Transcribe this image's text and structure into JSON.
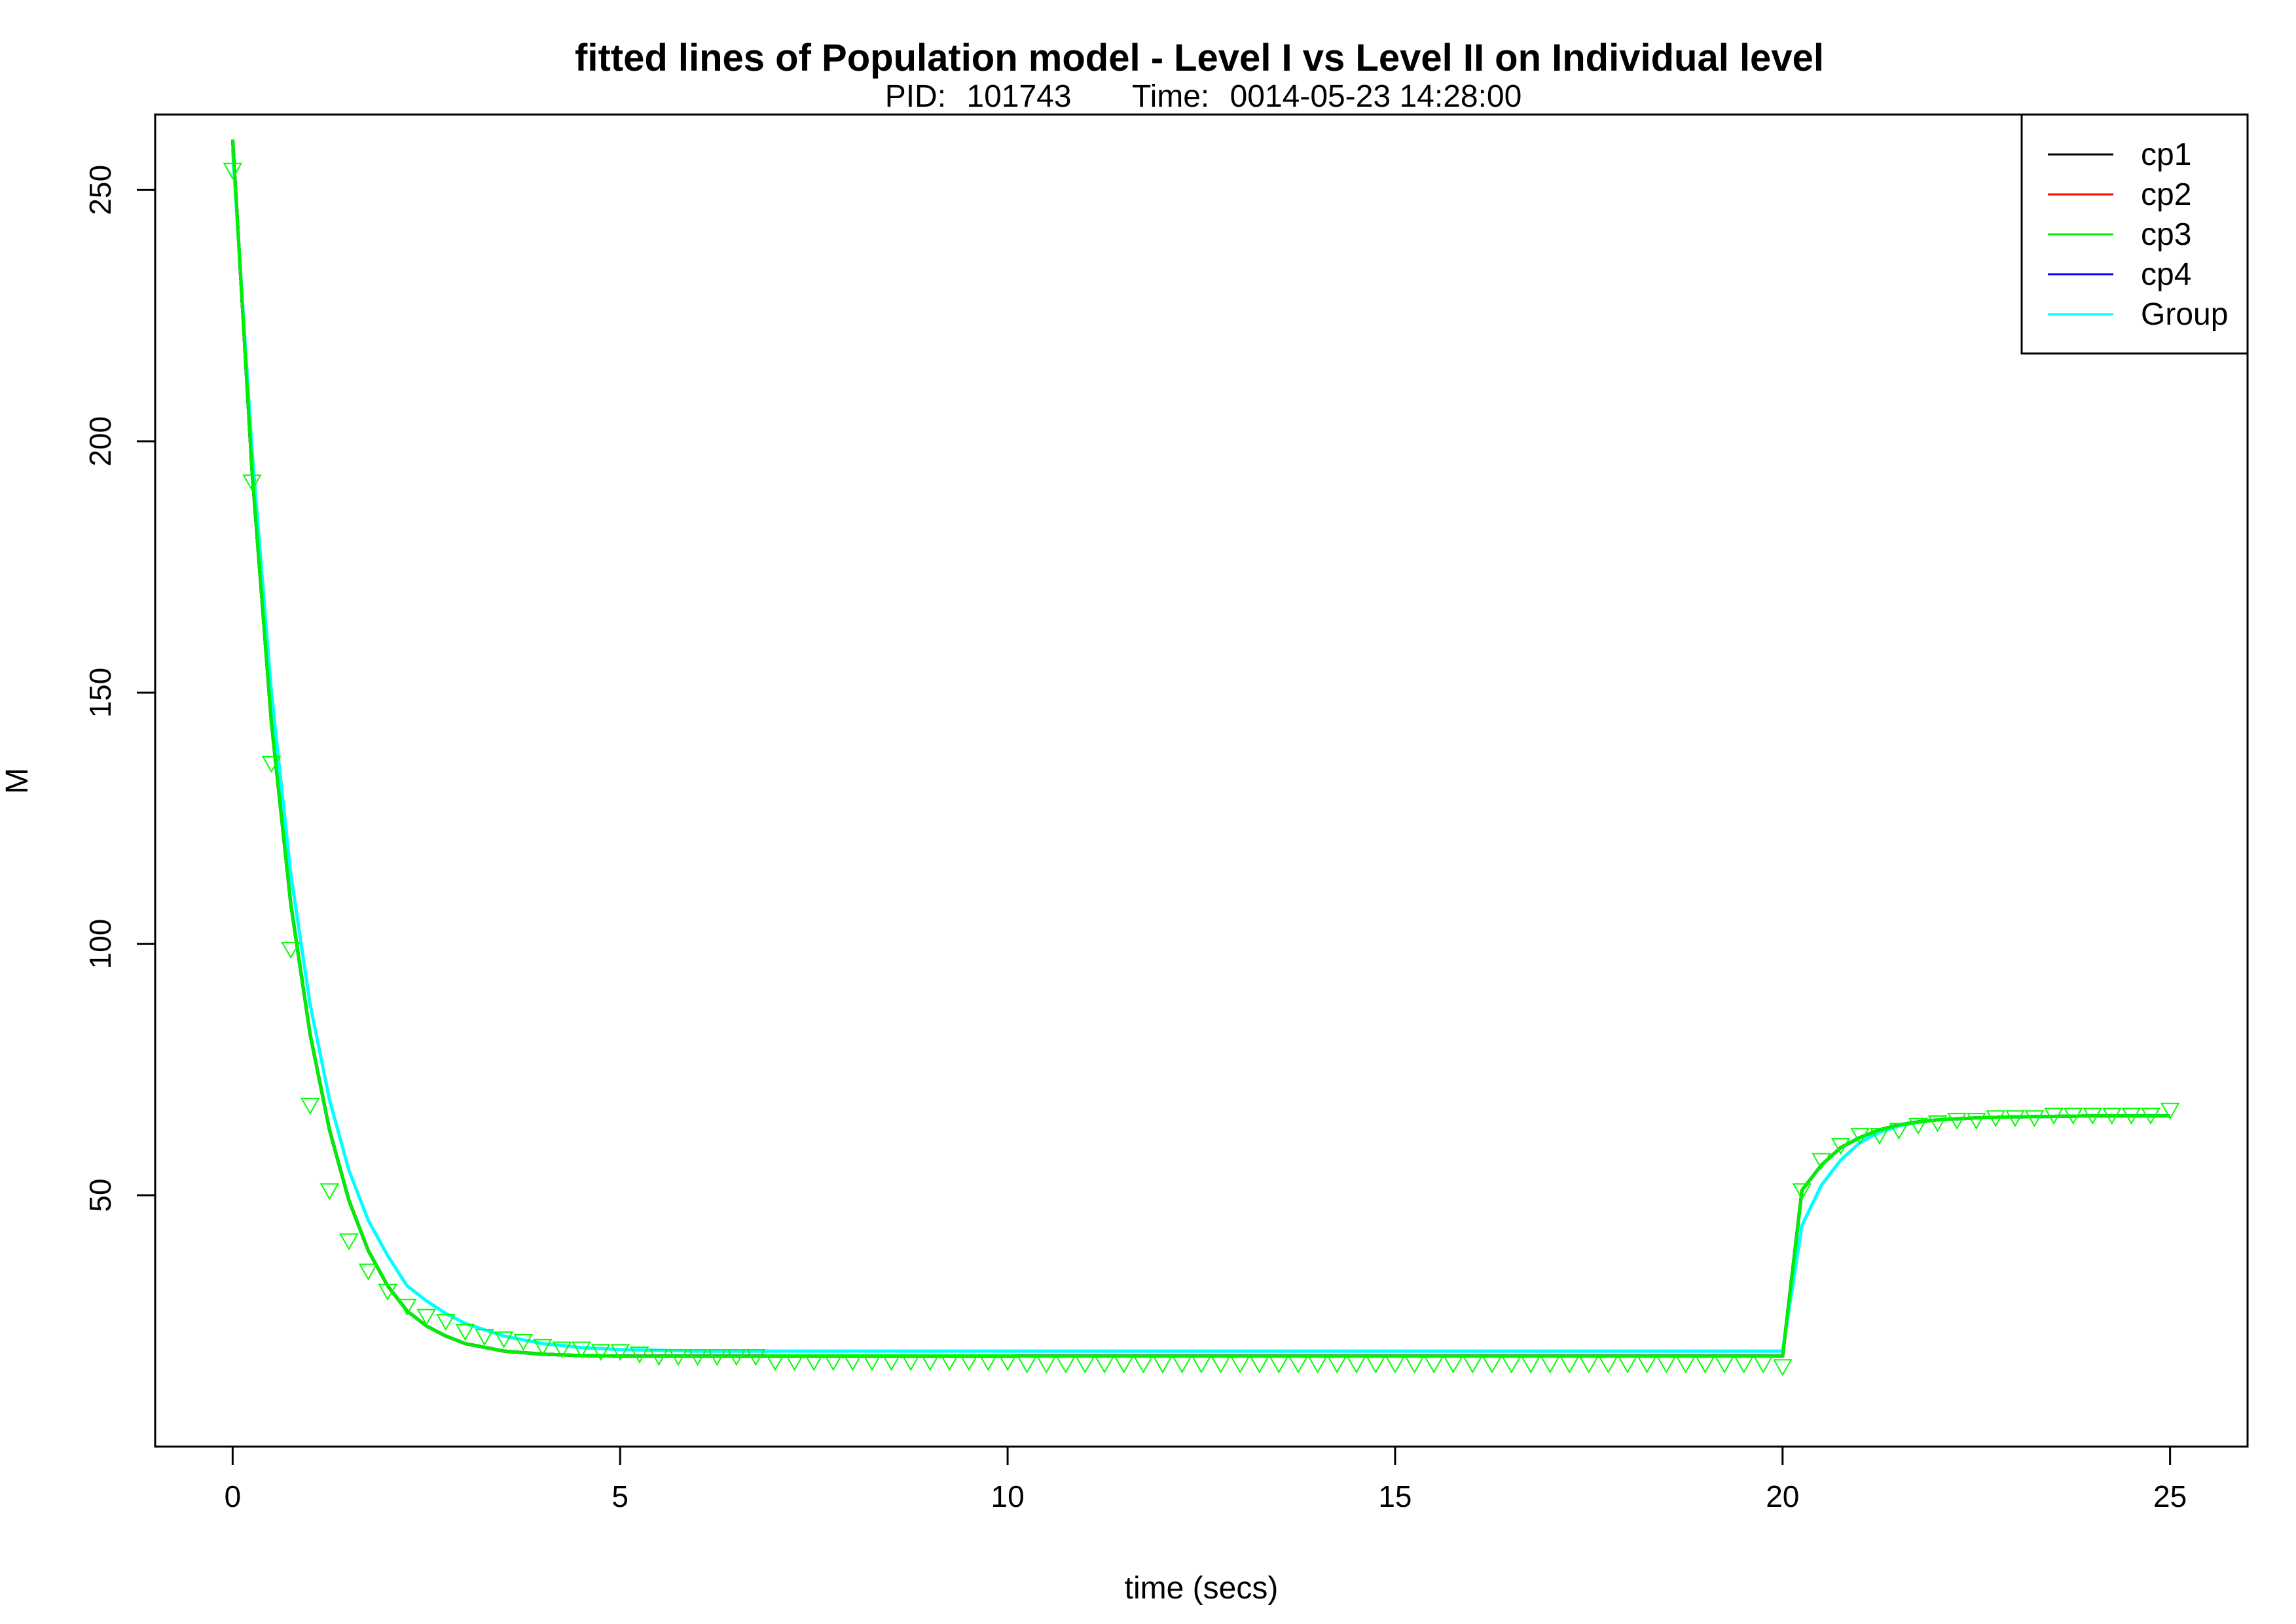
{
  "chart_data": {
    "type": "line",
    "title": "fitted lines of Population model - Level I vs Level II on Individual level",
    "subtitle": {
      "pid_label": "PID:",
      "pid": "101743",
      "time_label": "Time:",
      "time": "0014-05-23 14:28:00"
    },
    "xlabel": "time (secs)",
    "ylabel": "M",
    "xlim": [
      -1,
      26
    ],
    "ylim": [
      0,
      265
    ],
    "x_ticks": [
      0,
      5,
      10,
      15,
      20,
      25
    ],
    "y_ticks": [
      50,
      100,
      150,
      200,
      250
    ],
    "grid": false,
    "legend_position": "top-right",
    "series": [
      {
        "name": "cp1",
        "color": "#000000",
        "x": [
          0,
          0.25,
          0.5,
          0.75,
          1,
          1.25,
          1.5,
          1.75,
          2,
          2.25,
          2.5,
          2.75,
          3,
          3.5,
          4,
          4.5,
          5,
          6,
          7,
          8,
          9,
          10,
          12,
          14,
          16,
          18,
          20,
          20.25,
          20.5,
          20.75,
          21,
          21.25,
          21.5,
          21.75,
          22,
          22.5,
          23,
          23.5,
          24,
          25
        ],
        "y": [
          260,
          194,
          144,
          108,
          82,
          63,
          49,
          39,
          32,
          27,
          24,
          22,
          20.5,
          19,
          18.4,
          18.1,
          18,
          18,
          18,
          18,
          18,
          18,
          18,
          18,
          18,
          18,
          18,
          51,
          56,
          59.5,
          61.5,
          63,
          64,
          64.6,
          65,
          65.4,
          65.6,
          65.7,
          65.8,
          65.8
        ]
      },
      {
        "name": "cp2",
        "color": "#ff0000",
        "x": [
          0,
          0.25,
          0.5,
          0.75,
          1,
          1.25,
          1.5,
          1.75,
          2,
          2.25,
          2.5,
          2.75,
          3,
          3.5,
          4,
          4.5,
          5,
          6,
          7,
          8,
          9,
          10,
          12,
          14,
          16,
          18,
          20,
          20.25,
          20.5,
          20.75,
          21,
          21.25,
          21.5,
          21.75,
          22,
          22.5,
          23,
          23.5,
          24,
          25
        ],
        "y": [
          260,
          194,
          144,
          108,
          82,
          63,
          49,
          39,
          32,
          27,
          24,
          22,
          20.5,
          19,
          18.4,
          18.1,
          18,
          18,
          18,
          18,
          18,
          18,
          18,
          18,
          18,
          18,
          18,
          51,
          56,
          59.5,
          61.5,
          63,
          64,
          64.6,
          65,
          65.4,
          65.6,
          65.7,
          65.8,
          65.8
        ]
      },
      {
        "name": "cp3",
        "color": "#00ee00",
        "x": [
          0,
          0.25,
          0.5,
          0.75,
          1,
          1.25,
          1.5,
          1.75,
          2,
          2.25,
          2.5,
          2.75,
          3,
          3.5,
          4,
          4.5,
          5,
          6,
          7,
          8,
          9,
          10,
          12,
          14,
          16,
          18,
          20,
          20.25,
          20.5,
          20.75,
          21,
          21.25,
          21.5,
          21.75,
          22,
          22.5,
          23,
          23.5,
          24,
          25
        ],
        "y": [
          260,
          194,
          144,
          108,
          82,
          63,
          49,
          39,
          32,
          27,
          24,
          22,
          20.5,
          19,
          18.4,
          18.1,
          18,
          18,
          18,
          18,
          18,
          18,
          18,
          18,
          18,
          18,
          18,
          51,
          56,
          59.5,
          61.5,
          63,
          64,
          64.6,
          65,
          65.4,
          65.6,
          65.7,
          65.8,
          65.8
        ]
      },
      {
        "name": "cp4",
        "color": "#0000ff",
        "x": [
          0,
          0.25,
          0.5,
          0.75,
          1,
          1.25,
          1.5,
          1.75,
          2,
          2.25,
          2.5,
          2.75,
          3,
          3.5,
          4,
          4.5,
          5,
          6,
          7,
          8,
          9,
          10,
          12,
          14,
          16,
          18,
          20,
          20.25,
          20.5,
          20.75,
          21,
          21.25,
          21.5,
          21.75,
          22,
          22.5,
          23,
          23.5,
          24,
          25
        ],
        "y": [
          260,
          194,
          144,
          108,
          82,
          63,
          49,
          39,
          32,
          27,
          24,
          22,
          20.5,
          19,
          18.4,
          18.1,
          18,
          18,
          18,
          18,
          18,
          18,
          18,
          18,
          18,
          18,
          18,
          51,
          56,
          59.5,
          61.5,
          63,
          64,
          64.6,
          65,
          65.4,
          65.6,
          65.7,
          65.8,
          65.8
        ]
      },
      {
        "name": "Group",
        "color": "#00ffff",
        "x": [
          0,
          0.25,
          0.5,
          0.75,
          1,
          1.25,
          1.5,
          1.75,
          2,
          2.25,
          2.5,
          2.75,
          3,
          3.5,
          4,
          4.5,
          5,
          6,
          7,
          8,
          9,
          10,
          12,
          14,
          16,
          18,
          20,
          20.25,
          20.5,
          20.75,
          21,
          21.25,
          21.5,
          21.75,
          22,
          22.5,
          23,
          23.5,
          24,
          25
        ],
        "y": [
          258,
          198,
          150,
          114,
          88,
          69,
          55,
          45,
          38,
          32,
          29,
          26.5,
          24.5,
          22,
          20.5,
          19.7,
          19.3,
          19,
          19,
          19,
          19,
          19,
          19,
          19,
          19,
          19,
          19,
          44,
          52,
          57,
          60.5,
          62.5,
          63.8,
          64.5,
          65,
          65.4,
          65.6,
          65.7,
          65.8,
          65.8
        ]
      }
    ],
    "observations": {
      "marker": "triangle-down",
      "color": "#00ff00",
      "x": [
        0,
        0.25,
        0.5,
        0.75,
        1,
        1.25,
        1.5,
        1.75,
        2,
        2.25,
        2.5,
        2.75,
        3,
        3.25,
        3.5,
        3.75,
        4,
        4.25,
        4.5,
        4.75,
        5,
        5.25,
        5.5,
        5.75,
        6,
        6.25,
        6.5,
        6.75,
        7,
        7.25,
        7.5,
        7.75,
        8,
        8.25,
        8.5,
        8.75,
        9,
        9.25,
        9.5,
        9.75,
        10,
        10.25,
        10.5,
        10.75,
        11,
        11.25,
        11.5,
        11.75,
        12,
        12.25,
        12.5,
        12.75,
        13,
        13.25,
        13.5,
        13.75,
        14,
        14.25,
        14.5,
        14.75,
        15,
        15.25,
        15.5,
        15.75,
        16,
        16.25,
        16.5,
        16.75,
        17,
        17.25,
        17.5,
        17.75,
        18,
        18.25,
        18.5,
        18.75,
        19,
        19.25,
        19.5,
        19.75,
        20,
        20.25,
        20.5,
        20.75,
        21,
        21.25,
        21.5,
        21.75,
        22,
        22.25,
        22.5,
        22.75,
        23,
        23.25,
        23.5,
        23.75,
        24,
        24.25,
        24.5,
        24.75,
        25
      ],
      "y": [
        254,
        192,
        136,
        99,
        68,
        51,
        41,
        35,
        31,
        28,
        26,
        25,
        23,
        22,
        21.5,
        21,
        20,
        19.5,
        19.5,
        19,
        19,
        18.5,
        18,
        18,
        18,
        18,
        18,
        18,
        17,
        17,
        17,
        17,
        17,
        17,
        17,
        17,
        17,
        17,
        17,
        17,
        17,
        16.5,
        16.5,
        16.5,
        16.5,
        16.5,
        16.5,
        16.5,
        16.5,
        16.5,
        16.5,
        16.5,
        16.5,
        16.5,
        16.5,
        16.5,
        16.5,
        16.5,
        16.5,
        16.5,
        16.5,
        16.5,
        16.5,
        16.5,
        16.5,
        16.5,
        16.5,
        16.5,
        16.5,
        16.5,
        16.5,
        16.5,
        16.5,
        16.5,
        16.5,
        16.5,
        16.5,
        16.5,
        16.5,
        16.5,
        16,
        51,
        57,
        60,
        62,
        62,
        63,
        64,
        64.5,
        65,
        65,
        65.5,
        65.5,
        65.5,
        66,
        66,
        66,
        66,
        66,
        66,
        67
      ]
    }
  }
}
